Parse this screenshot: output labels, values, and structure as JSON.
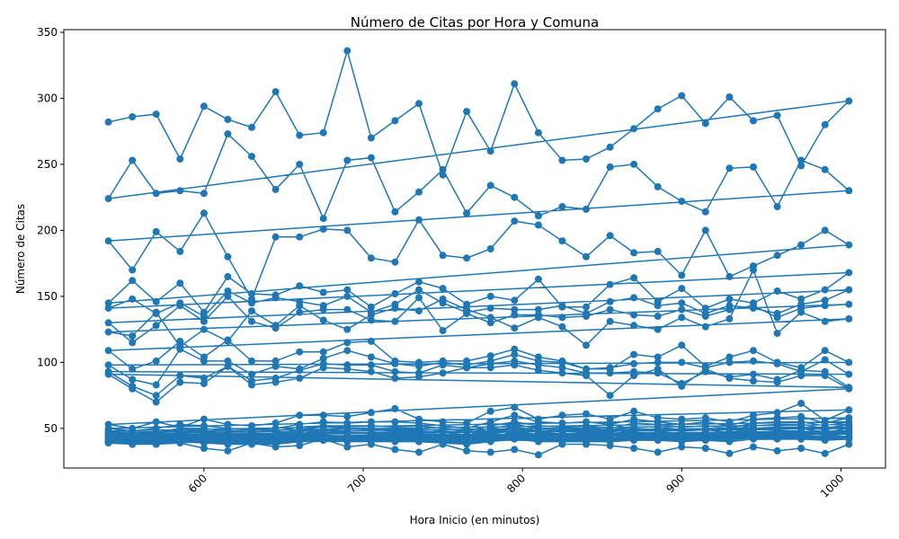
{
  "chart_data": {
    "type": "line",
    "title": "Número de Citas por Hora y Comuna",
    "xlabel": "Hora Inicio (en minutos)",
    "ylabel": "Número de Citas",
    "xlim": [
      512,
      1028
    ],
    "ylim": [
      20,
      352
    ],
    "xticks": [
      600,
      700,
      800,
      900,
      1000
    ],
    "yticks": [
      50,
      100,
      150,
      200,
      250,
      300,
      350
    ],
    "x_tick_rotation": 45,
    "grid": false,
    "color": "#1f77b4",
    "marker": "circle",
    "x": [
      540,
      555,
      570,
      585,
      600,
      615,
      630,
      645,
      660,
      675,
      690,
      705,
      720,
      735,
      750,
      765,
      780,
      795,
      810,
      825,
      840,
      855,
      870,
      885,
      900,
      915,
      930,
      945,
      960,
      975,
      990,
      1005
    ],
    "series": [
      {
        "values": [
          282,
          286,
          288,
          254,
          294,
          284,
          278,
          305,
          272,
          274,
          336,
          270,
          283,
          296,
          242,
          290,
          260,
          311,
          274,
          253,
          254,
          263,
          277,
          292,
          302,
          281,
          301,
          283,
          287,
          249,
          280,
          298
        ]
      },
      {
        "values": [
          224,
          253,
          228,
          230,
          228,
          273,
          256,
          231,
          250,
          209,
          253,
          255,
          214,
          229,
          246,
          213,
          234,
          225,
          211,
          218,
          216,
          248,
          250,
          233,
          222,
          214,
          247,
          248,
          218,
          253,
          246,
          230
        ]
      },
      {
        "values": [
          192,
          170,
          199,
          184,
          213,
          180,
          148,
          195,
          195,
          201,
          200,
          179,
          176,
          208,
          181,
          179,
          186,
          207,
          204,
          192,
          180,
          196,
          183,
          184,
          166,
          200,
          165,
          173,
          181,
          189,
          200,
          189
        ]
      },
      {
        "values": [
          145,
          162,
          146,
          160,
          138,
          165,
          152,
          151,
          158,
          153,
          155,
          142,
          152,
          161,
          156,
          144,
          150,
          147,
          163,
          142,
          142,
          159,
          164,
          146,
          156,
          141,
          148,
          145,
          154,
          148,
          155,
          168
        ]
      },
      {
        "values": [
          141,
          148,
          137,
          145,
          135,
          154,
          145,
          149,
          146,
          143,
          150,
          138,
          144,
          155,
          145,
          138,
          141,
          140,
          140,
          143,
          137,
          146,
          149,
          143,
          145,
          137,
          143,
          141,
          137,
          144,
          147,
          155
        ]
      },
      {
        "values": [
          130,
          115,
          128,
          143,
          131,
          150,
          131,
          126,
          138,
          140,
          140,
          132,
          131,
          149,
          124,
          137,
          130,
          136,
          136,
          134,
          135,
          140,
          136,
          135,
          140,
          135,
          140,
          143,
          134,
          141,
          143,
          144
        ]
      },
      {
        "values": [
          123,
          120,
          138,
          112,
          125,
          116,
          139,
          128,
          143,
          132,
          125,
          136,
          141,
          139,
          148,
          140,
          134,
          126,
          134,
          127,
          113,
          131,
          128,
          125,
          134,
          127,
          133,
          170,
          122,
          138,
          131,
          133
        ]
      },
      {
        "values": [
          109,
          95,
          101,
          116,
          104,
          117,
          101,
          101,
          108,
          108,
          115,
          116,
          101,
          100,
          101,
          101,
          105,
          110,
          104,
          101,
          95,
          95,
          106,
          104,
          113,
          97,
          104,
          109,
          100,
          96,
          109,
          100
        ]
      },
      {
        "values": [
          98,
          87,
          83,
          110,
          101,
          101,
          91,
          97,
          95,
          103,
          109,
          104,
          99,
          97,
          100,
          98,
          101,
          106,
          101,
          100,
          95,
          96,
          99,
          100,
          100,
          96,
          100,
          101,
          99,
          93,
          102,
          91
        ]
      },
      {
        "values": [
          93,
          82,
          75,
          90,
          88,
          97,
          86,
          88,
          94,
          99,
          98,
          98,
          93,
          92,
          98,
          96,
          99,
          101,
          98,
          96,
          92,
          92,
          93,
          92,
          84,
          93,
          89,
          91,
          87,
          94,
          93,
          81
        ]
      },
      {
        "values": [
          91,
          80,
          70,
          85,
          84,
          97,
          83,
          85,
          88,
          96,
          95,
          93,
          88,
          89,
          92,
          96,
          96,
          98,
          94,
          92,
          90,
          75,
          90,
          95,
          82,
          95,
          88,
          86,
          85,
          90,
          90,
          80
        ]
      },
      {
        "values": [
          53,
          50,
          55,
          51,
          57,
          53,
          52,
          54,
          60,
          60,
          59,
          62,
          65,
          57,
          55,
          54,
          63,
          66,
          57,
          60,
          61,
          57,
          63,
          58,
          57,
          58,
          55,
          60,
          62,
          69,
          56,
          64
        ]
      },
      {
        "values": [
          50,
          48,
          50,
          53,
          52,
          50,
          49,
          50,
          53,
          55,
          54,
          55,
          55,
          54,
          52,
          50,
          55,
          60,
          55,
          54,
          55,
          53,
          57,
          55,
          53,
          55,
          52,
          57,
          58,
          59,
          54,
          58
        ]
      },
      {
        "values": [
          48,
          46,
          47,
          50,
          50,
          48,
          47,
          48,
          51,
          52,
          52,
          52,
          51,
          52,
          50,
          48,
          52,
          55,
          52,
          51,
          52,
          50,
          54,
          53,
          51,
          52,
          50,
          54,
          55,
          55,
          52,
          55
        ]
      },
      {
        "values": [
          47,
          44,
          46,
          49,
          48,
          46,
          46,
          46,
          49,
          51,
          50,
          50,
          49,
          50,
          48,
          47,
          50,
          53,
          50,
          49,
          50,
          49,
          51,
          51,
          49,
          50,
          49,
          52,
          53,
          53,
          50,
          53
        ]
      },
      {
        "values": [
          46,
          43,
          45,
          47,
          47,
          45,
          45,
          45,
          48,
          49,
          48,
          49,
          48,
          48,
          47,
          45,
          48,
          51,
          48,
          48,
          48,
          47,
          50,
          49,
          48,
          49,
          47,
          50,
          51,
          51,
          49,
          51
        ]
      },
      {
        "values": [
          45,
          42,
          44,
          46,
          45,
          44,
          44,
          44,
          46,
          48,
          47,
          47,
          46,
          47,
          45,
          44,
          47,
          50,
          47,
          46,
          47,
          46,
          48,
          48,
          46,
          47,
          46,
          49,
          49,
          50,
          47,
          50
        ]
      },
      {
        "values": [
          44,
          41,
          43,
          45,
          44,
          43,
          43,
          43,
          45,
          46,
          46,
          46,
          45,
          46,
          44,
          43,
          46,
          48,
          45,
          45,
          45,
          45,
          47,
          46,
          45,
          46,
          45,
          47,
          48,
          48,
          46,
          48
        ]
      },
      {
        "values": [
          43,
          40,
          42,
          44,
          43,
          42,
          42,
          42,
          44,
          45,
          44,
          45,
          44,
          44,
          43,
          42,
          44,
          47,
          44,
          44,
          44,
          44,
          46,
          45,
          44,
          45,
          44,
          46,
          46,
          47,
          45,
          47
        ]
      },
      {
        "values": [
          42,
          40,
          41,
          43,
          42,
          41,
          41,
          41,
          43,
          44,
          43,
          43,
          43,
          43,
          42,
          41,
          43,
          45,
          43,
          43,
          43,
          43,
          44,
          44,
          43,
          44,
          43,
          45,
          45,
          45,
          44,
          46
        ]
      },
      {
        "values": [
          41,
          39,
          40,
          42,
          41,
          40,
          40,
          40,
          42,
          43,
          42,
          42,
          42,
          42,
          41,
          40,
          42,
          44,
          42,
          42,
          42,
          42,
          43,
          43,
          42,
          43,
          42,
          44,
          44,
          44,
          43,
          44
        ]
      },
      {
        "values": [
          40,
          38,
          39,
          41,
          40,
          39,
          39,
          39,
          41,
          42,
          41,
          41,
          41,
          41,
          40,
          39,
          41,
          43,
          41,
          41,
          41,
          41,
          42,
          42,
          41,
          42,
          41,
          43,
          43,
          43,
          42,
          43
        ]
      },
      {
        "values": [
          39,
          38,
          38,
          40,
          39,
          38,
          38,
          38,
          40,
          41,
          40,
          40,
          40,
          40,
          39,
          38,
          40,
          42,
          40,
          40,
          40,
          40,
          41,
          41,
          40,
          41,
          40,
          42,
          42,
          42,
          41,
          42
        ]
      },
      {
        "values": [
          40,
          38,
          38,
          39,
          35,
          33,
          39,
          36,
          37,
          42,
          36,
          38,
          34,
          32,
          38,
          33,
          32,
          34,
          30,
          38,
          38,
          37,
          35,
          32,
          36,
          35,
          31,
          36,
          33,
          35,
          31,
          38
        ]
      }
    ]
  }
}
